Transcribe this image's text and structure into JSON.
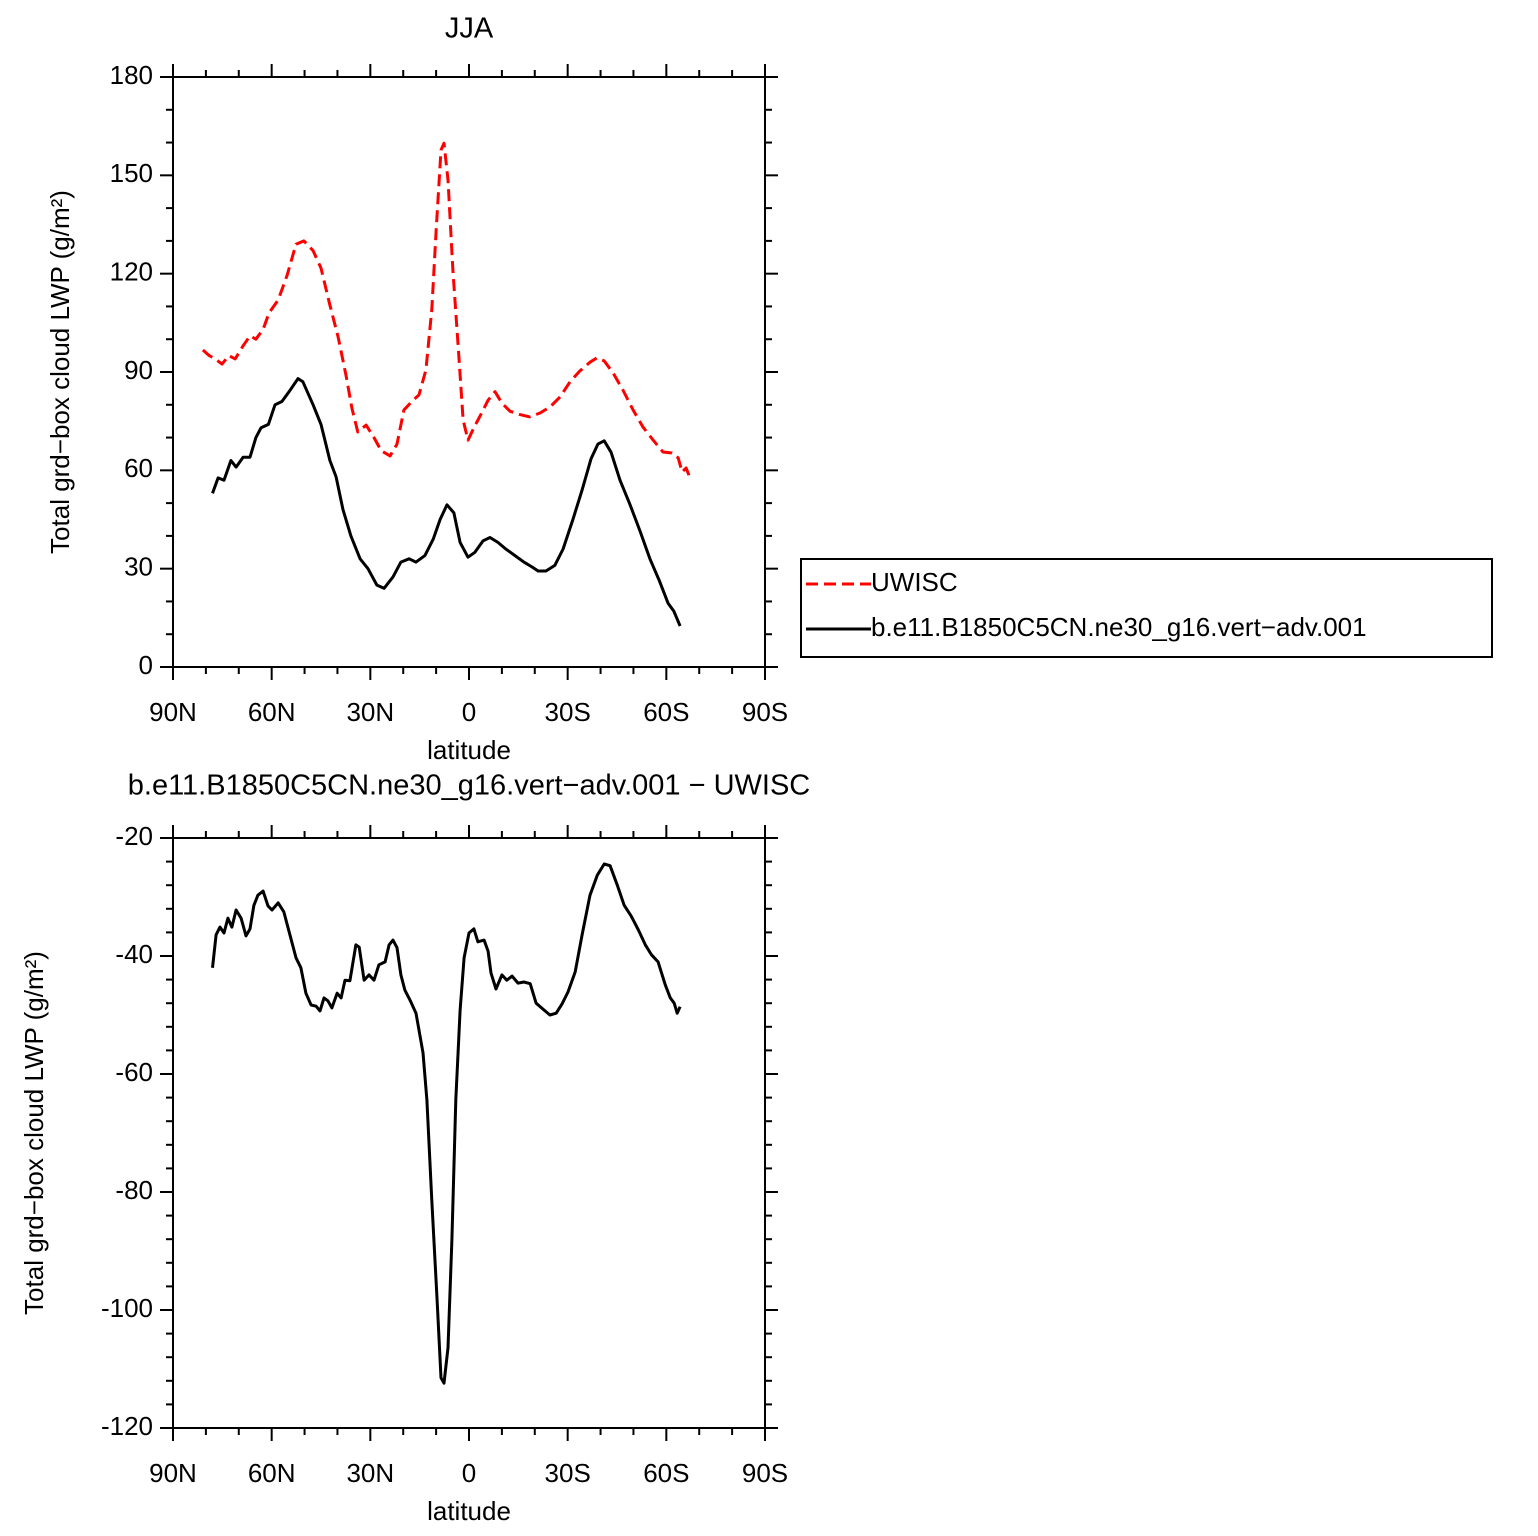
{
  "chart_data": [
    {
      "type": "line",
      "title": "JJA",
      "x_label": "latitude",
      "y_label": "Total grd−box cloud LWP (g/m²)",
      "xlim": [
        90,
        -90
      ],
      "xticks": [
        {
          "value": 90,
          "label": "90N"
        },
        {
          "value": 60,
          "label": "60N"
        },
        {
          "value": 30,
          "label": "30N"
        },
        0,
        {
          "value": -30,
          "label": "30S"
        },
        {
          "value": -60,
          "label": "60S"
        },
        {
          "value": -90,
          "label": "90S"
        }
      ],
      "xminorticks": [
        80,
        70,
        50,
        40,
        20,
        10,
        -10,
        -20,
        -40,
        -50,
        -70,
        -80
      ],
      "ylim": [
        0,
        180
      ],
      "yticks": [
        0,
        30,
        60,
        90,
        120,
        150,
        180
      ],
      "yminorticks": [
        10,
        20,
        40,
        50,
        70,
        80,
        100,
        110,
        130,
        140,
        160,
        170
      ],
      "legend": "outside-right",
      "series": [
        {
          "name": "UWISC",
          "color": "#ff0000",
          "linestyle": "dashed",
          "x": [
            80.9,
            79,
            77.2,
            75.1,
            73,
            71.1,
            68.7,
            66.6,
            64.8,
            62.6,
            60.8,
            58,
            55.3,
            52.6,
            50.2,
            47.4,
            45,
            42.3,
            39.8,
            37.4,
            35.6,
            33.8,
            31.3,
            28.9,
            26.7,
            24,
            21.9,
            19.8,
            17,
            15.2,
            13.1,
            11.3,
            10,
            8.5,
            7.6,
            6.4,
            4.9,
            3,
            1.8,
            0.3,
            -1.5,
            -3.6,
            -5.8,
            -7.9,
            -10,
            -12.5,
            -15.5,
            -18.5,
            -21.6,
            -24.6,
            -27.7,
            -30.7,
            -33.7,
            -36.8,
            -38.9,
            -41.1,
            -43.8,
            -46.8,
            -49.9,
            -52.9,
            -56,
            -59,
            -61.7,
            -63.6,
            -64.8,
            -66,
            -67.2
          ],
          "values": [
            96.7,
            95,
            94,
            92.4,
            95,
            94,
            98,
            101,
            100,
            103,
            108,
            112,
            119.5,
            129,
            130,
            127,
            121.7,
            110.4,
            100.7,
            89,
            79,
            71.7,
            73.8,
            70,
            66,
            64.4,
            68,
            78.4,
            81.4,
            83,
            90.6,
            109,
            133,
            157.7,
            159.8,
            148.6,
            121,
            93.7,
            75.4,
            69.2,
            73,
            77,
            81.4,
            84,
            80.5,
            78,
            77,
            76.3,
            77.5,
            79.3,
            82.4,
            87,
            90.3,
            93,
            94.3,
            93.4,
            89.7,
            84.5,
            78.4,
            73.2,
            69.2,
            65.6,
            65.3,
            63.8,
            59.5,
            60.7,
            57.7
          ]
        },
        {
          "name": "b.e11.B1850C5CN.ne30_g16.vert−adv.001",
          "color": "#000000",
          "linestyle": "solid",
          "x": [
            78,
            76.3,
            74.5,
            72.4,
            70.8,
            68.7,
            66.6,
            64.8,
            63.2,
            61,
            59,
            56.9,
            54.7,
            52,
            50.5,
            47.4,
            45,
            42.3,
            40.4,
            38.3,
            35.9,
            33.1,
            30.7,
            28,
            25.8,
            23.1,
            20.7,
            18.2,
            16.1,
            13.4,
            10.9,
            8.8,
            6.7,
            4.6,
            2.7,
            0.3,
            -1.8,
            -4.3,
            -6.4,
            -8.8,
            -11.2,
            -14,
            -16.7,
            -19.2,
            -21,
            -23.4,
            -26.1,
            -28.6,
            -31.6,
            -34.4,
            -37.1,
            -39.2,
            -41.1,
            -43.2,
            -45.9,
            -49,
            -52,
            -55,
            -57.8,
            -60.5,
            -62.3,
            -64.2
          ],
          "values": [
            53,
            57.7,
            57,
            63,
            61,
            64,
            64,
            70,
            73,
            74,
            80,
            81,
            84,
            88,
            87,
            80,
            74,
            63,
            58,
            48,
            40,
            33,
            30,
            25,
            24,
            27.5,
            32,
            33,
            32,
            34,
            39,
            45,
            49.5,
            47,
            38,
            33.5,
            35,
            38.5,
            39.5,
            38,
            36,
            34,
            32,
            30.5,
            29.3,
            29.3,
            31,
            36,
            45,
            54,
            63.5,
            68,
            69,
            65.5,
            57,
            49.4,
            41.5,
            33,
            26.5,
            19.5,
            17,
            12.5
          ]
        }
      ]
    },
    {
      "type": "line",
      "title": "b.e11.B1850C5CN.ne30_g16.vert−adv.001  −  UWISC",
      "x_label": "latitude",
      "y_label": "Total grd−box cloud LWP (g/m²)",
      "xlim": [
        90,
        -90
      ],
      "xticks": [
        {
          "value": 90,
          "label": "90N"
        },
        {
          "value": 60,
          "label": "60N"
        },
        {
          "value": 30,
          "label": "30N"
        },
        0,
        {
          "value": -30,
          "label": "30S"
        },
        {
          "value": -60,
          "label": "60S"
        },
        {
          "value": -90,
          "label": "90S"
        }
      ],
      "xminorticks": [
        80,
        70,
        50,
        40,
        20,
        10,
        -10,
        -20,
        -40,
        -50,
        -70,
        -80
      ],
      "ylim": [
        -120,
        -20
      ],
      "yticks": [
        -120,
        -100,
        -80,
        -60,
        -40,
        -20
      ],
      "yminorticks": [
        -24,
        -28,
        -32,
        -36,
        -44,
        -48,
        -52,
        -56,
        -64,
        -68,
        -72,
        -76,
        -84,
        -88,
        -92,
        -96,
        -104,
        -108,
        -112,
        -116
      ],
      "series": [
        {
          "color": "#000000",
          "linestyle": "solid",
          "x": [
            78,
            76.9,
            75.7,
            74.5,
            73.3,
            72.1,
            70.8,
            69.3,
            67.8,
            66.6,
            65.4,
            64.2,
            62.6,
            61.1,
            59.9,
            58,
            56.3,
            54.7,
            52.6,
            51.1,
            49.6,
            48,
            46.5,
            45.3,
            44.1,
            42.9,
            41.7,
            40.1,
            38.9,
            37.7,
            36.2,
            34.4,
            33.4,
            31.9,
            30.4,
            28.9,
            27.4,
            25.5,
            24.3,
            23.1,
            21.9,
            20.7,
            19.5,
            17.9,
            16.1,
            14,
            12.8,
            11.3,
            9.7,
            8.5,
            7.6,
            6.4,
            5.2,
            4,
            2.7,
            1.5,
            0,
            -1.5,
            -2.7,
            -4.6,
            -5.8,
            -6.7,
            -8.2,
            -10,
            -11.5,
            -13.1,
            -14.9,
            -16.7,
            -18.6,
            -20.4,
            -22.5,
            -24.6,
            -26.5,
            -28.3,
            -30.1,
            -32.3,
            -34.4,
            -36.8,
            -39,
            -41.1,
            -42.9,
            -45.1,
            -47.2,
            -49.3,
            -51.5,
            -53.6,
            -55.5,
            -57.5,
            -59.7,
            -61.2,
            -62.4,
            -63.3,
            -64.2
          ],
          "values": [
            -42,
            -36.4,
            -35.1,
            -36.1,
            -33.6,
            -35.1,
            -32.2,
            -33.6,
            -36.6,
            -35.4,
            -31.4,
            -29.7,
            -29,
            -31.5,
            -32.2,
            -31,
            -32.5,
            -35.9,
            -40.3,
            -42,
            -46.3,
            -48.3,
            -48.5,
            -49.3,
            -47.1,
            -47.6,
            -48.8,
            -46.3,
            -47.1,
            -44.1,
            -44.2,
            -38.1,
            -38.5,
            -44.1,
            -43.2,
            -44.1,
            -41.5,
            -41,
            -38.1,
            -37.3,
            -38.6,
            -43.2,
            -45.8,
            -47.5,
            -49.7,
            -56.4,
            -64.4,
            -81.4,
            -98.3,
            -111.5,
            -112.4,
            -106.4,
            -88.1,
            -64.4,
            -49.2,
            -40.3,
            -36.1,
            -35.4,
            -37.6,
            -37.3,
            -39.2,
            -42.9,
            -45.6,
            -43.2,
            -44.1,
            -43.4,
            -44.6,
            -44.4,
            -44.7,
            -48,
            -49,
            -50,
            -49.7,
            -48.1,
            -46.1,
            -42.7,
            -36.4,
            -29.7,
            -26.3,
            -24.4,
            -24.7,
            -28,
            -31.4,
            -33.2,
            -35.6,
            -38.1,
            -39.8,
            -41,
            -44.9,
            -47.1,
            -48,
            -49.7,
            -48.6
          ]
        }
      ]
    }
  ]
}
